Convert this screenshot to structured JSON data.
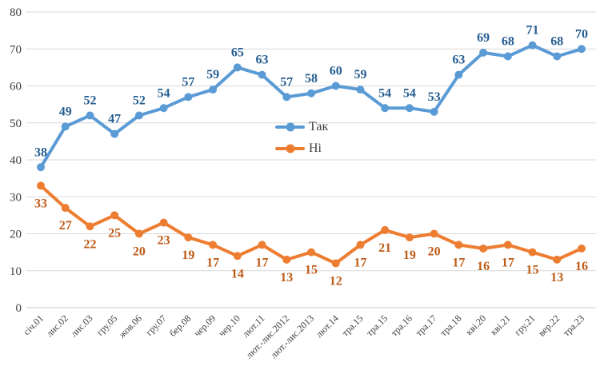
{
  "chart_data": {
    "type": "line",
    "title": "",
    "xlabel": "",
    "ylabel": "",
    "categories": [
      "січ.01",
      "лис.02",
      "лис.03",
      "гру.05",
      "жов.06",
      "гру.07",
      "бер.08",
      "чер.09",
      "чер.10",
      "лют.11",
      "лют.-лис.2012",
      "лют.-лис.2013",
      "лют.14",
      "тра.15",
      "тра.15",
      "тра.16",
      "тра.17",
      "тра.18",
      "кві.20",
      "кві.21",
      "гру.21",
      "вер.22",
      "тра.23"
    ],
    "series": [
      {
        "name": "Так",
        "color": "#5B9BD5",
        "label_color": "#255E91",
        "label_position": "above",
        "values": [
          38,
          49,
          52,
          47,
          52,
          54,
          57,
          59,
          65,
          63,
          57,
          58,
          60,
          59,
          54,
          54,
          53,
          63,
          69,
          68,
          71,
          68,
          70
        ]
      },
      {
        "name": "Ні",
        "color": "#ED7D31",
        "label_color": "#BE5B17",
        "label_position": "below",
        "values": [
          33,
          27,
          22,
          25,
          20,
          23,
          19,
          17,
          14,
          17,
          13,
          15,
          12,
          17,
          21,
          19,
          20,
          17,
          16,
          17,
          15,
          13,
          16
        ]
      }
    ],
    "ylim": [
      0,
      80
    ],
    "y_tick_step": 10,
    "y_tick_labels": [
      "0",
      "10",
      "20",
      "30",
      "40",
      "50",
      "60",
      "70",
      "80"
    ],
    "grid": "horizontal",
    "grid_color": "#D9D9D9",
    "axis_line_color": "#C8C8C8",
    "axis_text_color": "#404040",
    "legend_position": "inside-center",
    "marker": "circle",
    "data_labels_shown": true
  }
}
